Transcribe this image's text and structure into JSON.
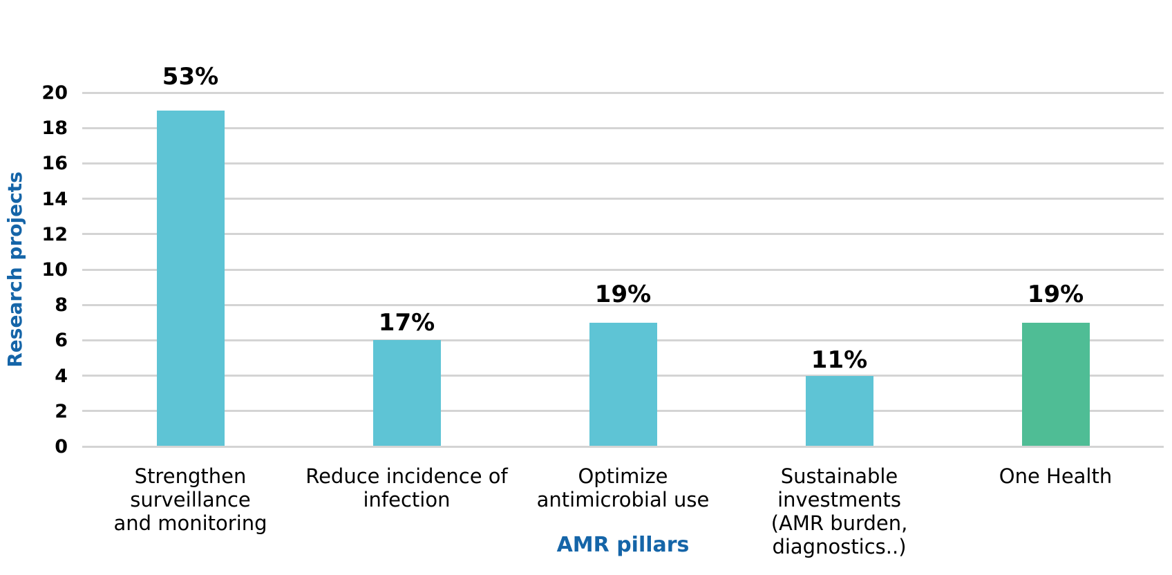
{
  "chart_data": {
    "type": "bar",
    "title": "",
    "xlabel": "AMR pillars",
    "ylabel": "Research projects",
    "ylim": [
      0,
      20
    ],
    "ytick_step": 2,
    "grid": true,
    "legend_position": "none",
    "categories": [
      "Strengthen surveillance and monitoring",
      "Reduce incidence of infection",
      "Optimize antimicrobial use",
      "Sustainable investments (AMR burden, diagnostics..)",
      "One Health"
    ],
    "category_lines": [
      [
        "Strengthen surveillance",
        "and monitoring"
      ],
      [
        "Reduce incidence of",
        "infection"
      ],
      [
        "Optimize",
        "antimicrobial use"
      ],
      [
        "Sustainable investments",
        "(AMR burden,",
        "diagnostics..)"
      ],
      [
        "One Health"
      ]
    ],
    "values": [
      19,
      6,
      7,
      4,
      7
    ],
    "bar_labels": [
      "53%",
      "17%",
      "19%",
      "11%",
      "19%"
    ],
    "colors": {
      "bars": [
        "#5ec4d5",
        "#5ec4d5",
        "#5ec4d5",
        "#5ec4d5",
        "#4fbd95"
      ],
      "gridline": "#d4d4d4",
      "axis_title": "#1565a8",
      "tick_label": "#000000",
      "value_label": "#000000",
      "background": "#ffffff"
    }
  }
}
